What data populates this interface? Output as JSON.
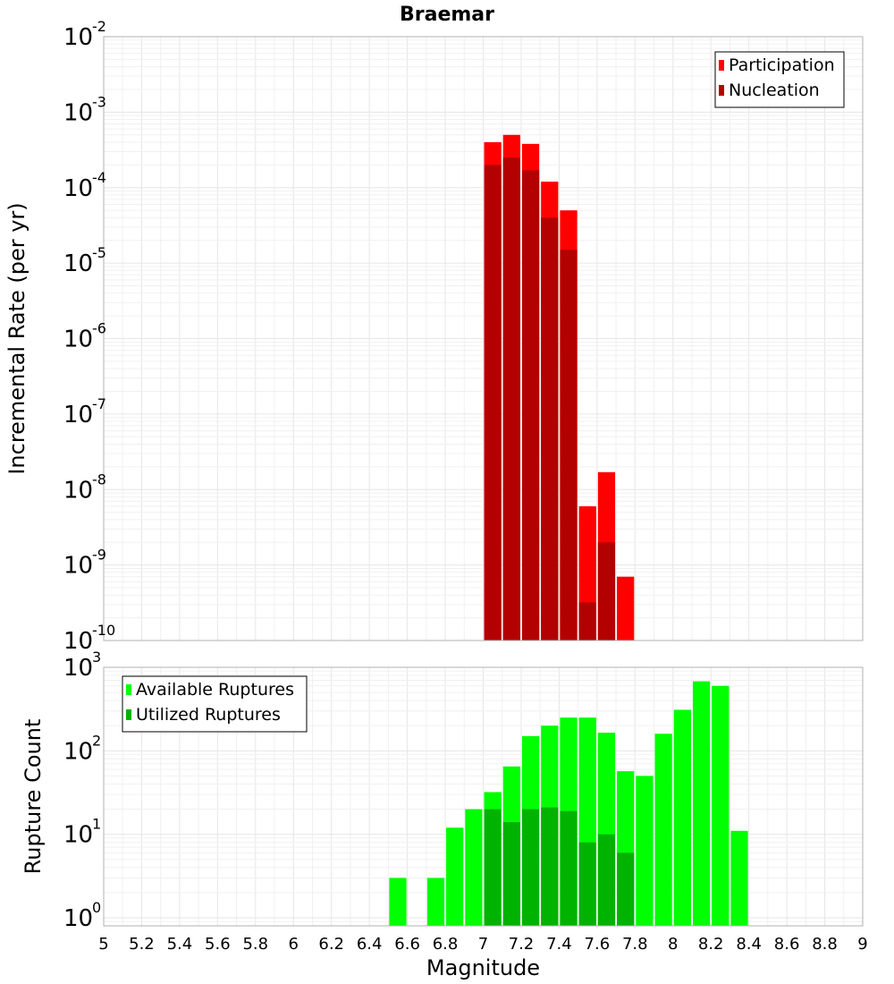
{
  "chart_data": [
    {
      "type": "bar",
      "title": "Braemar",
      "ylabel": "Incremental Rate (per yr)",
      "xlabel": "",
      "xlim": [
        5,
        9
      ],
      "ylim": [
        1e-10,
        0.01
      ],
      "yscale": "log",
      "grid": true,
      "legend": "top-right",
      "bar_width": 0.1,
      "y_ticks": [
        {
          "base": "10",
          "exp": "-2",
          "value": 0.01
        },
        {
          "base": "10",
          "exp": "-3",
          "value": 0.001
        },
        {
          "base": "10",
          "exp": "-4",
          "value": 0.0001
        },
        {
          "base": "10",
          "exp": "-5",
          "value": 1e-05
        },
        {
          "base": "10",
          "exp": "-6",
          "value": 1e-06
        },
        {
          "base": "10",
          "exp": "-7",
          "value": 1e-07
        },
        {
          "base": "10",
          "exp": "-8",
          "value": 1e-08
        },
        {
          "base": "10",
          "exp": "-9",
          "value": 1e-09
        },
        {
          "base": "10",
          "exp": "-10",
          "value": 1e-10
        }
      ],
      "series": [
        {
          "name": "Participation",
          "color": "#ff0000",
          "x": [
            7.05,
            7.15,
            7.25,
            7.35,
            7.45,
            7.55,
            7.65,
            7.75
          ],
          "values": [
            0.0004,
            0.0005,
            0.00038,
            0.00012,
            5e-05,
            6e-09,
            1.7e-08,
            7e-10
          ]
        },
        {
          "name": "Nucleation",
          "color": "#b30000",
          "x": [
            7.05,
            7.15,
            7.25,
            7.35,
            7.45,
            7.55,
            7.65
          ],
          "values": [
            0.0002,
            0.00025,
            0.00017,
            4e-05,
            1.5e-05,
            3.2e-10,
            2e-09
          ]
        }
      ]
    },
    {
      "type": "bar",
      "title": "",
      "ylabel": "Rupture Count",
      "xlabel": "Magnitude",
      "xlim": [
        5,
        9
      ],
      "ylim": [
        0.8,
        1000
      ],
      "yscale": "log",
      "grid": true,
      "legend": "top-left",
      "bar_width": 0.1,
      "x_ticks": [
        "5",
        "5.2",
        "5.4",
        "5.6",
        "5.8",
        "6",
        "6.2",
        "6.4",
        "6.6",
        "6.8",
        "7",
        "7.2",
        "7.4",
        "7.6",
        "7.8",
        "8",
        "8.2",
        "8.4",
        "8.6",
        "8.8",
        "9"
      ],
      "y_ticks": [
        {
          "base": "10",
          "exp": "3",
          "value": 1000
        },
        {
          "base": "10",
          "exp": "2",
          "value": 100
        },
        {
          "base": "10",
          "exp": "1",
          "value": 10
        },
        {
          "base": "10",
          "exp": "0",
          "value": 1
        }
      ],
      "series": [
        {
          "name": "Available Ruptures",
          "color": "#00ff00",
          "x": [
            6.55,
            6.75,
            6.85,
            6.95,
            7.05,
            7.15,
            7.25,
            7.35,
            7.45,
            7.55,
            7.65,
            7.75,
            7.85,
            7.95,
            8.05,
            8.15,
            8.25,
            8.35
          ],
          "values": [
            3,
            3,
            12,
            20,
            32,
            65,
            150,
            200,
            250,
            250,
            165,
            57,
            50,
            160,
            310,
            680,
            600,
            11
          ]
        },
        {
          "name": "Utilized Ruptures",
          "color": "#00b300",
          "x": [
            7.05,
            7.15,
            7.25,
            7.35,
            7.45,
            7.55,
            7.65,
            7.75
          ],
          "values": [
            20,
            14,
            20,
            21,
            19,
            8,
            10,
            6
          ]
        }
      ]
    }
  ]
}
